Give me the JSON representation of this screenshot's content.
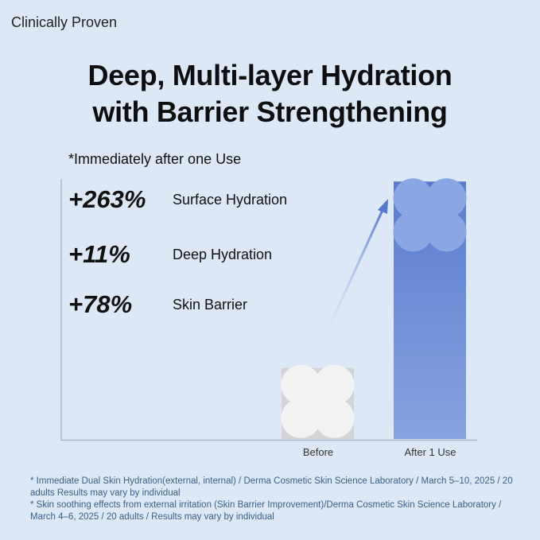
{
  "tag": "Clinically Proven",
  "title_line1": "Deep, Multi-layer Hydration",
  "title_line2": "with Barrier Strengthening",
  "subtitle": "*Immediately after one Use",
  "stats": [
    {
      "value": "+263%",
      "label": "Surface Hydration"
    },
    {
      "value": "+11%",
      "label": "Deep Hydration"
    },
    {
      "value": "+78%",
      "label": "Skin Barrier"
    }
  ],
  "chart_data": {
    "type": "bar",
    "title": "",
    "xlabel": "",
    "ylabel": "",
    "categories": [
      "Before",
      "After 1 Use"
    ],
    "values": [
      100,
      363
    ],
    "ylim": [
      0,
      370
    ],
    "grid": false,
    "colors": [
      "#d6d6d6",
      "#6384d4"
    ]
  },
  "footnotes": [
    "* Immediate Dual Skin Hydration(external, internal)  / Derma Cosmetic Skin Science Laboratory / March 5–10, 2025 / 20 adults Results may vary by individual",
    "* Skin soothing effects from external irritation (Skin Barrier Improvement)/Derma Cosmetic Skin Science Laboratory / March 4–6, 2025 / 20 adults / Results may vary by individual"
  ]
}
